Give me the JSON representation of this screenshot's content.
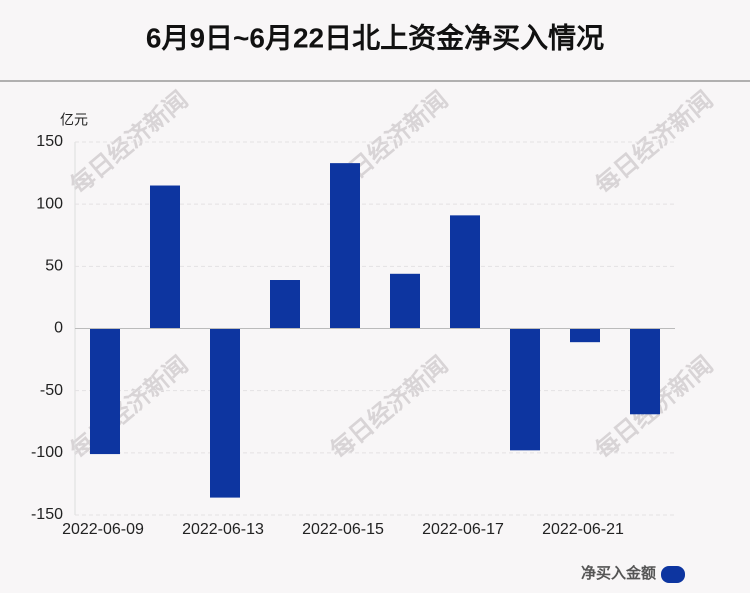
{
  "chart_data": {
    "type": "bar",
    "title": "6月9日~6月22日北上资金净买入情况",
    "y_unit": "亿元",
    "watermark": "每日经济新闻",
    "categories": [
      "2022-06-09",
      null,
      "2022-06-13",
      null,
      "2022-06-15",
      null,
      "2022-06-17",
      null,
      "2022-06-21",
      null
    ],
    "series": [
      {
        "name": "净买入金额",
        "color": "#0d35a0",
        "values": [
          -101,
          115,
          -136,
          39,
          133,
          44,
          91,
          -98,
          -11,
          -69
        ]
      }
    ],
    "ylim": [
      -150,
      150
    ],
    "yticks": [
      -150,
      -100,
      -50,
      0,
      50,
      100,
      150
    ],
    "grid": true,
    "legend": "bottom-right"
  }
}
